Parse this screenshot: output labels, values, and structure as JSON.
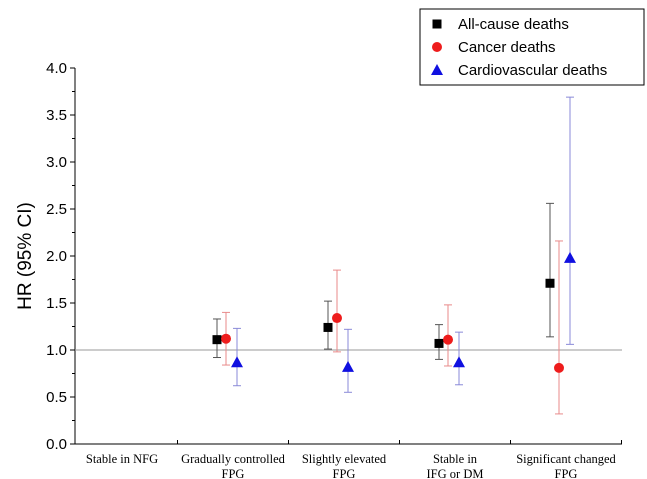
{
  "chart_data": {
    "type": "scatter",
    "title": "",
    "xlabel": "",
    "ylabel": "HR (95% CI)",
    "ylim": [
      0.0,
      4.0
    ],
    "yticks": [
      "0.0",
      "0.5",
      "1.0",
      "1.5",
      "2.0",
      "2.5",
      "3.0",
      "3.5",
      "4.0"
    ],
    "reference_line": 1.0,
    "categories": [
      [
        "Stable in NFG"
      ],
      [
        "Gradually controlled",
        "FPG"
      ],
      [
        "Slightly elevated",
        "FPG"
      ],
      [
        "Stable in",
        "IFG or DM"
      ],
      [
        "Significant changed",
        "FPG"
      ]
    ],
    "legend_position": "top-right",
    "series": [
      {
        "name": "All-cause deaths",
        "marker": "square",
        "color": "#000000",
        "whisker_color": "#555555",
        "points": [
          {
            "category": 1,
            "hr": 1.11,
            "low": 0.92,
            "high": 1.33
          },
          {
            "category": 2,
            "hr": 1.24,
            "low": 1.01,
            "high": 1.52
          },
          {
            "category": 3,
            "hr": 1.07,
            "low": 0.9,
            "high": 1.27
          },
          {
            "category": 4,
            "hr": 1.71,
            "low": 1.14,
            "high": 2.56
          }
        ]
      },
      {
        "name": "Cancer deaths",
        "marker": "circle",
        "color": "#ee1c1c",
        "whisker_color": "#e88a8a",
        "points": [
          {
            "category": 1,
            "hr": 1.12,
            "low": 0.84,
            "high": 1.4
          },
          {
            "category": 2,
            "hr": 1.34,
            "low": 0.98,
            "high": 1.85
          },
          {
            "category": 3,
            "hr": 1.11,
            "low": 0.83,
            "high": 1.48
          },
          {
            "category": 4,
            "hr": 0.81,
            "low": 0.32,
            "high": 2.16
          }
        ]
      },
      {
        "name": "Cardiovascular deaths",
        "marker": "triangle",
        "color": "#1010e0",
        "whisker_color": "#8a8ad8",
        "points": [
          {
            "category": 1,
            "hr": 0.87,
            "low": 0.62,
            "high": 1.23
          },
          {
            "category": 2,
            "hr": 0.82,
            "low": 0.55,
            "high": 1.22
          },
          {
            "category": 3,
            "hr": 0.87,
            "low": 0.63,
            "high": 1.19
          },
          {
            "category": 4,
            "hr": 1.98,
            "low": 1.06,
            "high": 3.69
          }
        ]
      }
    ]
  }
}
